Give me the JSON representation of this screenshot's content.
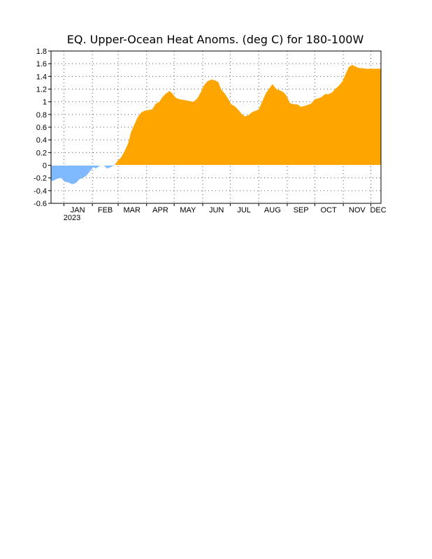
{
  "chart_data": {
    "type": "area",
    "title": "EQ. Upper-Ocean Heat Anoms. (deg C) for 180-100W",
    "xlabel": "",
    "ylabel": "",
    "year_label": "2023",
    "ylim": [
      -0.6,
      1.8
    ],
    "yticks": [
      "-0.6",
      "-0.4",
      "-0.2",
      "0",
      "0.2",
      "0.4",
      "0.6",
      "0.8",
      "1",
      "1.2",
      "1.4",
      "1.6",
      "1.8"
    ],
    "month_labels": [
      {
        "label": "JAN",
        "day": 15
      },
      {
        "label": "FEB",
        "day": 45
      },
      {
        "label": "MAR",
        "day": 74
      },
      {
        "label": "APR",
        "day": 105
      },
      {
        "label": "MAY",
        "day": 135
      },
      {
        "label": "JUN",
        "day": 166
      },
      {
        "label": "JUL",
        "day": 196
      },
      {
        "label": "AUG",
        "day": 227
      },
      {
        "label": "SEP",
        "day": 258
      },
      {
        "label": "OCT",
        "day": 288
      },
      {
        "label": "NOV",
        "day": 319
      },
      {
        "label": "DEC",
        "day": 342
      }
    ],
    "xlim": [
      -14,
      345
    ],
    "grid": true,
    "positive_color": "#ffa500",
    "negative_color": "#7fb9ff",
    "series": [
      {
        "x": [
          -14,
          -11,
          -7,
          -3,
          1,
          5,
          9,
          13,
          17,
          20,
          24,
          28,
          32,
          35,
          39,
          43,
          47,
          51,
          55,
          58,
          62,
          66,
          70,
          73,
          77,
          80,
          84,
          88,
          92,
          96,
          100,
          104,
          107,
          111,
          115,
          118,
          122,
          126,
          130,
          134,
          137,
          141,
          145,
          149,
          152,
          156,
          160,
          164,
          168,
          171,
          175,
          179,
          182,
          186,
          190,
          194,
          197,
          201,
          205,
          209,
          212,
          216,
          220,
          224,
          227,
          231,
          235,
          239,
          242,
          246,
          250,
          254,
          258,
          261,
          265,
          269,
          273,
          276,
          280,
          284,
          288,
          292,
          295,
          299,
          303,
          307,
          310,
          314,
          318,
          322,
          325,
          329,
          333,
          337,
          341,
          345
        ],
        "y": [
          -0.25,
          -0.24,
          -0.21,
          -0.2,
          -0.26,
          -0.27,
          -0.3,
          -0.28,
          -0.22,
          -0.2,
          -0.17,
          -0.1,
          -0.03,
          -0.05,
          -0.01,
          0.0,
          -0.05,
          -0.03,
          0.0,
          0.06,
          0.12,
          0.22,
          0.35,
          0.52,
          0.65,
          0.75,
          0.83,
          0.86,
          0.87,
          0.88,
          0.97,
          1.0,
          1.07,
          1.13,
          1.17,
          1.13,
          1.06,
          1.04,
          1.03,
          1.02,
          1.01,
          1.0,
          1.05,
          1.15,
          1.25,
          1.32,
          1.35,
          1.34,
          1.31,
          1.2,
          1.13,
          1.04,
          0.96,
          0.93,
          0.87,
          0.8,
          0.77,
          0.79,
          0.84,
          0.86,
          0.88,
          1.01,
          1.14,
          1.22,
          1.28,
          1.2,
          1.18,
          1.15,
          1.1,
          0.98,
          0.96,
          0.96,
          0.92,
          0.93,
          0.95,
          0.97,
          1.04,
          1.05,
          1.07,
          1.12,
          1.12,
          1.15,
          1.2,
          1.25,
          1.32,
          1.45,
          1.55,
          1.58,
          1.55,
          1.53,
          1.53,
          1.52,
          1.52,
          1.52,
          1.52,
          1.52
        ]
      }
    ]
  }
}
